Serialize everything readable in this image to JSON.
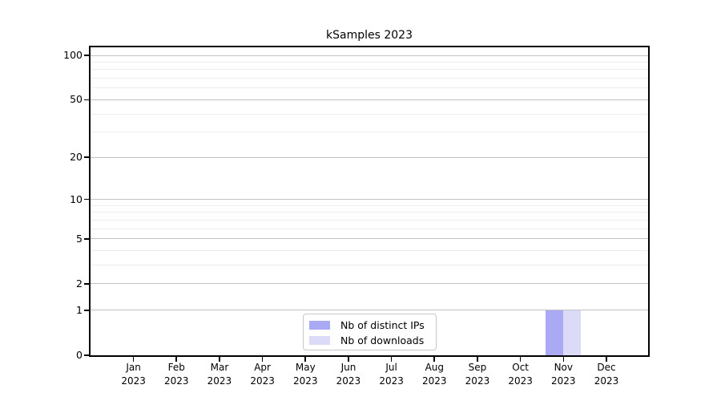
{
  "chart_data": {
    "type": "bar",
    "title": "kSamples 2023",
    "categories": [
      {
        "month": "Jan",
        "year": "2023"
      },
      {
        "month": "Feb",
        "year": "2023"
      },
      {
        "month": "Mar",
        "year": "2023"
      },
      {
        "month": "Apr",
        "year": "2023"
      },
      {
        "month": "May",
        "year": "2023"
      },
      {
        "month": "Jun",
        "year": "2023"
      },
      {
        "month": "Jul",
        "year": "2023"
      },
      {
        "month": "Aug",
        "year": "2023"
      },
      {
        "month": "Sep",
        "year": "2023"
      },
      {
        "month": "Oct",
        "year": "2023"
      },
      {
        "month": "Nov",
        "year": "2023"
      },
      {
        "month": "Dec",
        "year": "2023"
      }
    ],
    "series": [
      {
        "name": "Nb of distinct IPs",
        "color": "#a9a9f4",
        "values": [
          0,
          0,
          0,
          0,
          0,
          0,
          0,
          0,
          0,
          0,
          1,
          0
        ]
      },
      {
        "name": "Nb of downloads",
        "color": "#dbdbf8",
        "values": [
          0,
          0,
          0,
          0,
          0,
          0,
          0,
          0,
          0,
          0,
          1,
          0
        ]
      }
    ],
    "xlabel": "",
    "ylabel": "",
    "y_axis": {
      "scale": "log1p",
      "ylim": [
        0,
        113
      ],
      "major_ticks": [
        0,
        1,
        2,
        5,
        10,
        20,
        50,
        100
      ],
      "minor_gridlines": [
        3,
        4,
        6,
        7,
        8,
        9,
        30,
        40,
        60,
        70,
        80,
        90
      ],
      "major_grid_color": "#c2c2c2",
      "minor_grid_color": "#ececec"
    },
    "grid": "on",
    "legend_position": "inside-bottom-center",
    "colors": {
      "axis": "#000000",
      "background": "#ffffff",
      "legend_border": "#c8c8c8"
    }
  }
}
